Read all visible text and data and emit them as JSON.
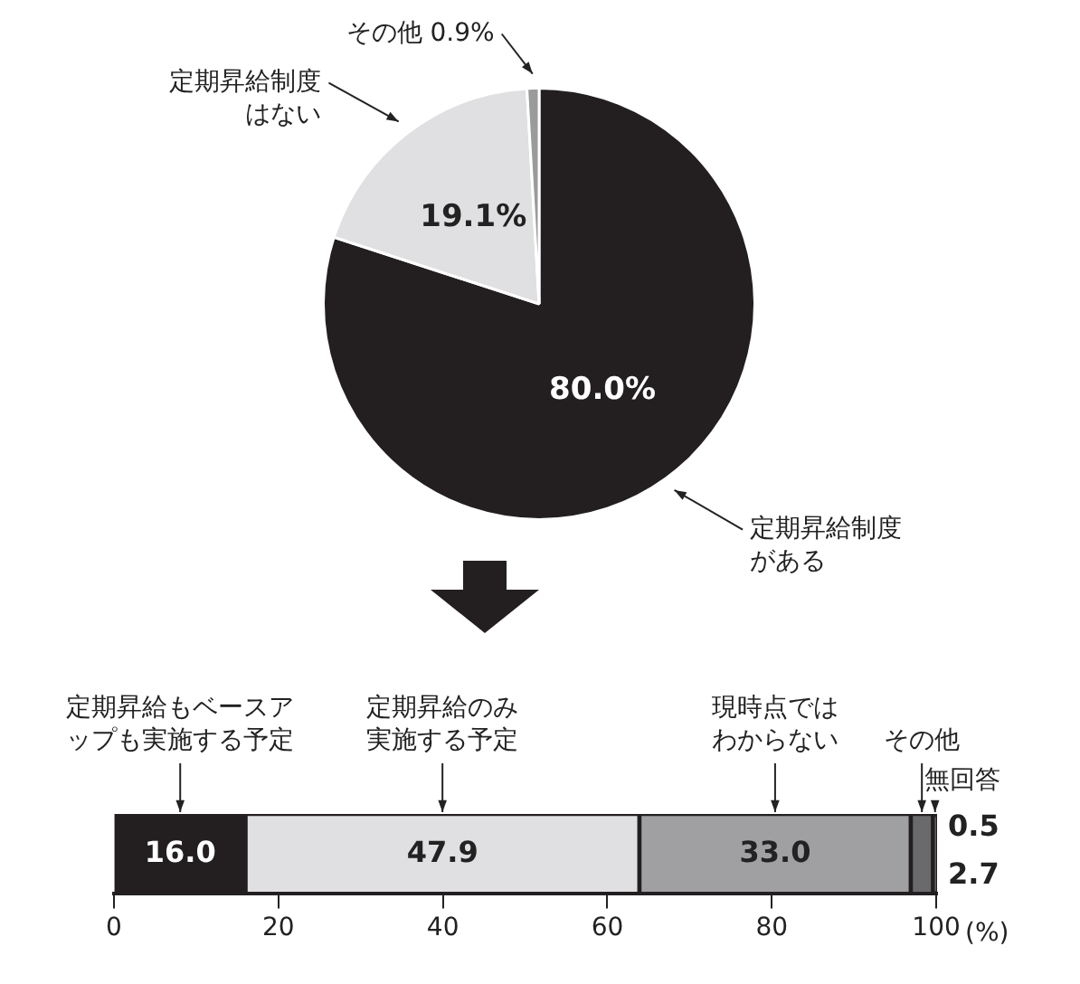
{
  "chart_data": [
    {
      "type": "pie",
      "categories": [
        "定期昇給制度がある",
        "定期昇給制度はない",
        "その他"
      ],
      "values": [
        80.0,
        19.1,
        0.9
      ],
      "value_labels": [
        "80.0%",
        "19.1%",
        "0.9%"
      ],
      "colors": [
        "#231f20",
        "#e0e0e2",
        "#9a9a9c"
      ],
      "legend": false
    },
    {
      "type": "bar",
      "orientation": "horizontal",
      "stacked": true,
      "categories": [
        null
      ],
      "xlim": [
        0,
        100.1
      ],
      "xticks": [
        0,
        20,
        40,
        60,
        80,
        100
      ],
      "xlabel": "(%)",
      "grid": false,
      "legend": false,
      "series": [
        {
          "name": "定期昇給もベースアップも実施する予定",
          "color": "#231f20",
          "values": [
            16.0
          ],
          "value_labels": [
            "16.0"
          ]
        },
        {
          "name": "定期昇給のみ実施する予定",
          "color": "#e0e0e2",
          "values": [
            47.9
          ],
          "value_labels": [
            "47.9"
          ]
        },
        {
          "name": "現時点ではわからない",
          "color": "#a0a0a3",
          "values": [
            33.0
          ],
          "value_labels": [
            "33.0"
          ]
        },
        {
          "name": "その他",
          "color": "#6a6a6c",
          "values": [
            2.7
          ],
          "value_labels": [
            "2.7"
          ]
        },
        {
          "name": "無回答",
          "color": "#3a3a3a",
          "values": [
            0.5
          ],
          "value_labels": [
            "0.5"
          ]
        }
      ]
    }
  ]
}
